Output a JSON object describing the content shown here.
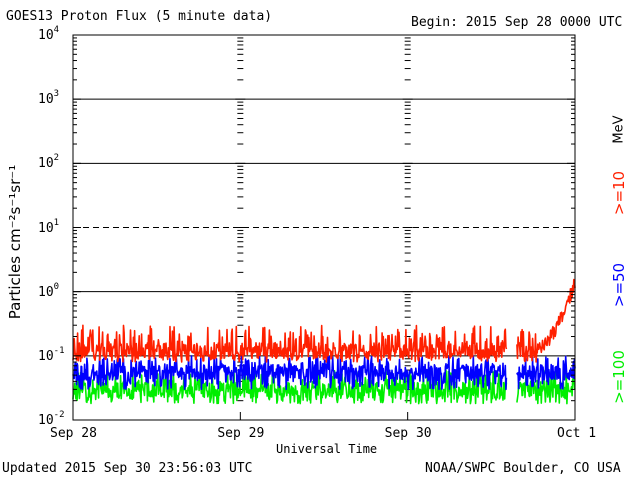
{
  "header": {
    "title": "GOES13 Proton Flux (5 minute data)",
    "begin": "Begin: 2015 Sep 28 0000 UTC"
  },
  "footer": {
    "updated": "Updated 2015 Sep 30 23:56:03 UTC",
    "credit": "NOAA/SWPC Boulder, CO USA"
  },
  "chart_data": {
    "type": "line",
    "title": "GOES13 Proton Flux (5 minute data)",
    "xlabel": "Universal Time",
    "ylabel": "Particles cm⁻²s⁻¹sr⁻¹",
    "yscale": "log",
    "ylim": [
      0.01,
      10000
    ],
    "xlim": [
      0,
      72
    ],
    "x_unit": "hours since 2015 Sep 28 0000 UTC",
    "x_ticks": [
      {
        "x": 0,
        "label": "Sep 28"
      },
      {
        "x": 24,
        "label": "Sep 29"
      },
      {
        "x": 48,
        "label": "Sep 30"
      },
      {
        "x": 72,
        "label": "Oct 1"
      }
    ],
    "y_ticks": [
      {
        "value": 10000,
        "base": "10",
        "exp": "4"
      },
      {
        "value": 1000,
        "base": "10",
        "exp": "3"
      },
      {
        "value": 100,
        "base": "10",
        "exp": "2"
      },
      {
        "value": 10,
        "base": "10",
        "exp": "1"
      },
      {
        "value": 1,
        "base": "10",
        "exp": "0"
      },
      {
        "value": 0.1,
        "base": "10",
        "exp": "-1"
      },
      {
        "value": 0.01,
        "base": "10",
        "exp": "-2"
      }
    ],
    "threshold_lines": [
      {
        "value": 1000,
        "style": "solid"
      },
      {
        "value": 100,
        "style": "solid"
      },
      {
        "value": 10,
        "style": "dashed"
      },
      {
        "value": 1,
        "style": "solid"
      },
      {
        "value": 0.1,
        "style": "solid"
      }
    ],
    "data_gap_hours": [
      [
        62.2,
        63.6
      ]
    ],
    "series": [
      {
        "name": ">=10",
        "color": "#ff2000",
        "baseline": 0.12,
        "low": 0.08,
        "high": 0.3,
        "rise": {
          "start_hour": 66.5,
          "peak_hour": 71.8,
          "peak_value": 1.2
        }
      },
      {
        "name": ">=50",
        "color": "#0000ff",
        "baseline": 0.055,
        "low": 0.03,
        "high": 0.1
      },
      {
        "name": ">=100",
        "color": "#00ee00",
        "baseline": 0.03,
        "low": 0.018,
        "high": 0.06
      }
    ],
    "legend": {
      "position": "right",
      "unit": "MeV"
    }
  }
}
